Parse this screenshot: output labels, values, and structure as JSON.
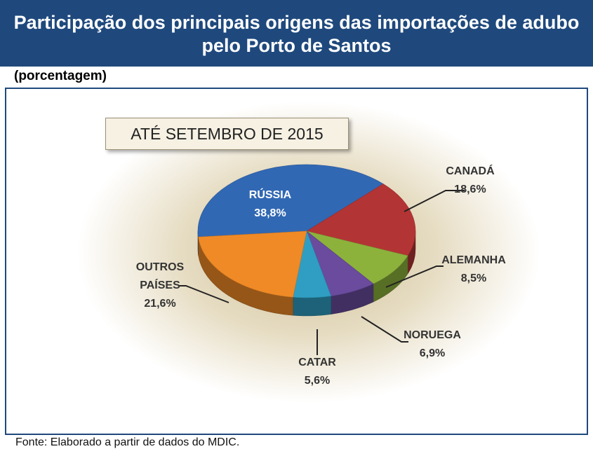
{
  "chart_data": {
    "type": "pie",
    "title": "Participação dos principais origens das importações de adubo pelo Porto de Santos",
    "subtitle": "(porcentagem)",
    "annotation": "ATÉ SETEMBRO DE 2015",
    "source": "Fonte: Elaborado a partir de dados do MDIC.",
    "categories": [
      "RÚSSIA",
      "CANADÁ",
      "ALEMANHA",
      "NORUEGA",
      "CATAR",
      "OUTROS PAÍSES"
    ],
    "values": [
      38.8,
      18.6,
      8.5,
      6.9,
      5.6,
      21.6
    ],
    "value_labels": [
      "38,8%",
      "18,6%",
      "8,5%",
      "6,9%",
      "5,6%",
      "21,6%"
    ],
    "colors": [
      "#3168b3",
      "#b33434",
      "#8cb23c",
      "#6a4b9e",
      "#2f9ec2",
      "#f08a26"
    ]
  }
}
